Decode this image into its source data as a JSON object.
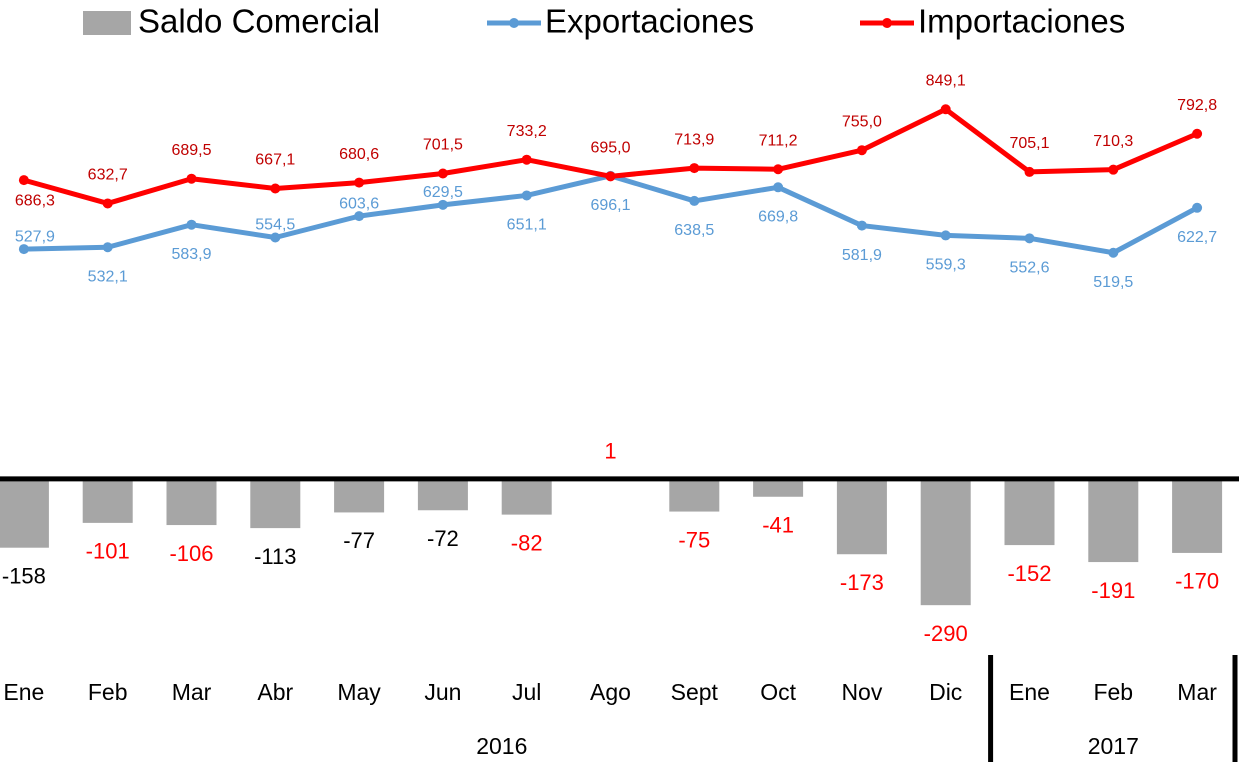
{
  "chart_data": {
    "type": "combo",
    "categories": [
      "Ene",
      "Feb",
      "Mar",
      "Abr",
      "May",
      "Jun",
      "Jul",
      "Ago",
      "Sept",
      "Oct",
      "Nov",
      "Dic",
      "Ene",
      "Feb",
      "Mar"
    ],
    "groups": [
      {
        "label": "2016",
        "count": 12
      },
      {
        "label": "2017",
        "count": 3
      }
    ],
    "ylim": [
      -370,
      1100
    ],
    "legend": "top",
    "series": [
      {
        "name": "Saldo Comercial",
        "type": "bar",
        "color": "#a6a6a6",
        "values": [
          -158,
          -101,
          -106,
          -113,
          -77,
          -72,
          -82,
          1,
          -75,
          -41,
          -173,
          -290,
          -152,
          -191,
          -170
        ],
        "label_colors": [
          "#000000",
          "#ff0000",
          "#ff0000",
          "#000000",
          "#000000",
          "#000000",
          "#ff0000",
          "#ff0000",
          "#ff0000",
          "#ff0000",
          "#ff0000",
          "#ff0000",
          "#ff0000",
          "#ff0000",
          "#ff0000"
        ]
      },
      {
        "name": "Exportaciones",
        "type": "line",
        "color": "#5b9bd5",
        "label_color": "#5b9bd5",
        "values": [
          527.9,
          532.1,
          583.9,
          554.5,
          603.6,
          629.5,
          651.1,
          696.1,
          638.5,
          669.8,
          581.9,
          559.3,
          552.6,
          519.5,
          622.7
        ],
        "value_labels": [
          "527,9",
          "532,1",
          "583,9",
          "554,5",
          "603,6",
          "629,5",
          "651,1",
          "696,1",
          "638,5",
          "669,8",
          "581,9",
          "559,3",
          "552,6",
          "519,5",
          "622,7"
        ]
      },
      {
        "name": "Importaciones",
        "type": "line",
        "color": "#ff0000",
        "label_color": "#c00000",
        "values": [
          686.3,
          632.7,
          689.5,
          667.1,
          680.6,
          701.5,
          733.2,
          695.0,
          713.9,
          711.2,
          755.0,
          849.1,
          705.1,
          710.3,
          792.8
        ],
        "value_labels": [
          "686,3",
          "632,7",
          "689,5",
          "667,1",
          "680,6",
          "701,5",
          "733,2",
          "695,0",
          "713,9",
          "711,2",
          "755,0",
          "849,1",
          "705,1",
          "710,3",
          "792,8"
        ]
      }
    ]
  }
}
